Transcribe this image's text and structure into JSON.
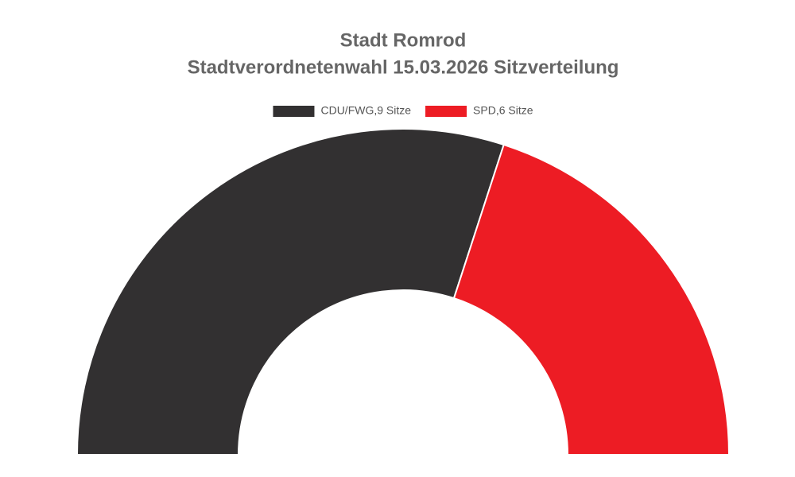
{
  "chart_data": {
    "type": "halfdonut",
    "title": [
      "Stadt Romrod",
      "Stadtverordnetenwahl 15.03.2026 Sitzverteilung"
    ],
    "categories": [
      "CDU/FWG,9 Sitze",
      "SPD,6 Sitze"
    ],
    "values": [
      9,
      6
    ],
    "colors": [
      "#323031",
      "#ed1c24"
    ],
    "legend": "top"
  }
}
